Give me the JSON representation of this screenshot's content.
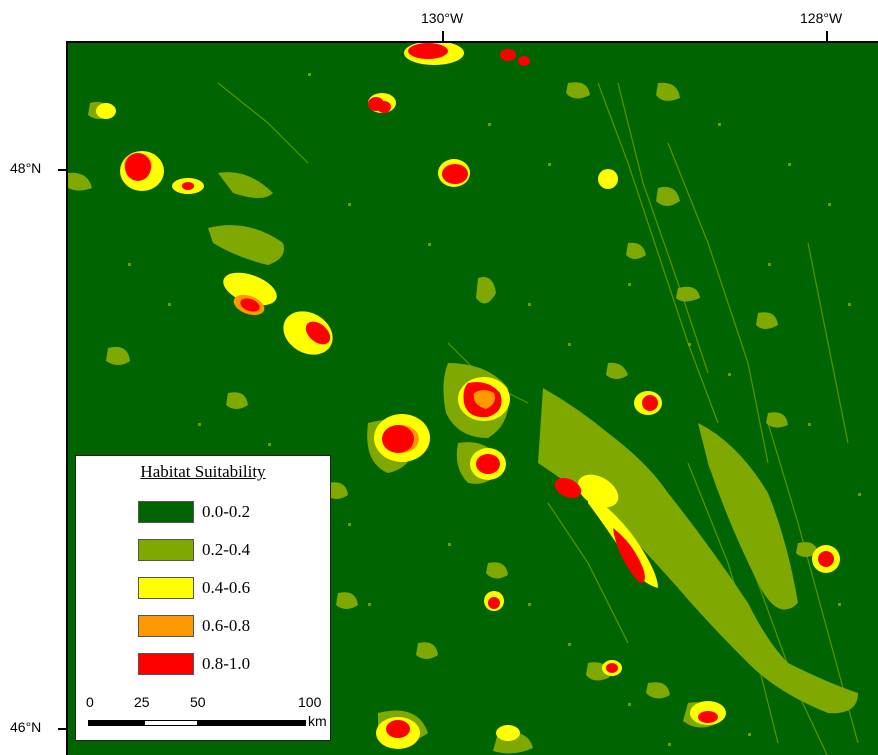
{
  "axes": {
    "x_ticks": [
      "130°W",
      "128°W"
    ],
    "y_ticks": [
      "48°N",
      "46°N"
    ]
  },
  "legend": {
    "title": "Habitat Suitability",
    "classes": [
      {
        "label": "0.0-0.2",
        "color": "#006400"
      },
      {
        "label": "0.2-0.4",
        "color": "#7FA800"
      },
      {
        "label": "0.4-0.6",
        "color": "#FFFF00"
      },
      {
        "label": "0.6-0.8",
        "color": "#FF9900"
      },
      {
        "label": "0.8-1.0",
        "color": "#FF0000"
      }
    ]
  },
  "scalebar": {
    "labels": [
      "0",
      "25",
      "50",
      "100"
    ],
    "unit": "km"
  }
}
